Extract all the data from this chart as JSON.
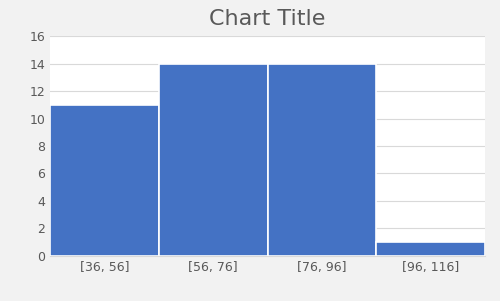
{
  "title": "Chart Title",
  "bins": [
    "[36, 56]",
    "[56, 76]",
    "[76, 96]",
    "[96, 116]"
  ],
  "bin_edges": [
    36,
    56,
    76,
    96,
    116
  ],
  "counts": [
    11,
    14,
    14,
    1
  ],
  "bar_color": "#4472C4",
  "bar_edgecolor": "#ffffff",
  "background_color": "#f2f2f2",
  "plot_background": "#ffffff",
  "ylim": [
    0,
    16
  ],
  "yticks": [
    0,
    2,
    4,
    6,
    8,
    10,
    12,
    14,
    16
  ],
  "title_fontsize": 16,
  "tick_fontsize": 9,
  "grid_color": "#d9d9d9",
  "grid_linewidth": 0.8,
  "title_color": "#595959"
}
